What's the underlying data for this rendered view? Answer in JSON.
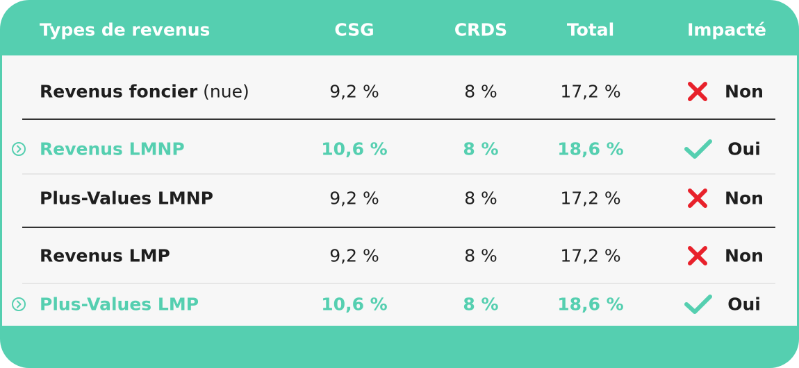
{
  "header": {
    "columns": [
      "Types de revenus",
      "CSG",
      "CRDS",
      "Total",
      "Impacté"
    ]
  },
  "table": {
    "rows": [
      {
        "type": "Revenus foncier",
        "note": "(nue)",
        "csg": "9,2 %",
        "crds": "8 %",
        "total": "17,2 %",
        "impacted": "Non",
        "highlighted": false
      },
      {
        "type": "Revenus LMNP",
        "csg": "10,6 %",
        "crds": "8 %",
        "total": "18,6 %",
        "impacted": "Oui",
        "highlighted": true
      },
      {
        "type": "Plus-Values LMNP",
        "csg": "9,2 %",
        "crds": "8 %",
        "total": "17,2 %",
        "impacted": "Non",
        "highlighted": false
      },
      {
        "type": "Revenus LMP",
        "csg": "9,2 %",
        "crds": "8 %",
        "total": "17,2 %",
        "impacted": "Non",
        "highlighted": false
      },
      {
        "type": "Plus-Values LMP",
        "csg": "10,6 %",
        "crds": "8 %",
        "total": "18,6 %",
        "impacted": "Oui",
        "highlighted": true
      }
    ]
  }
}
